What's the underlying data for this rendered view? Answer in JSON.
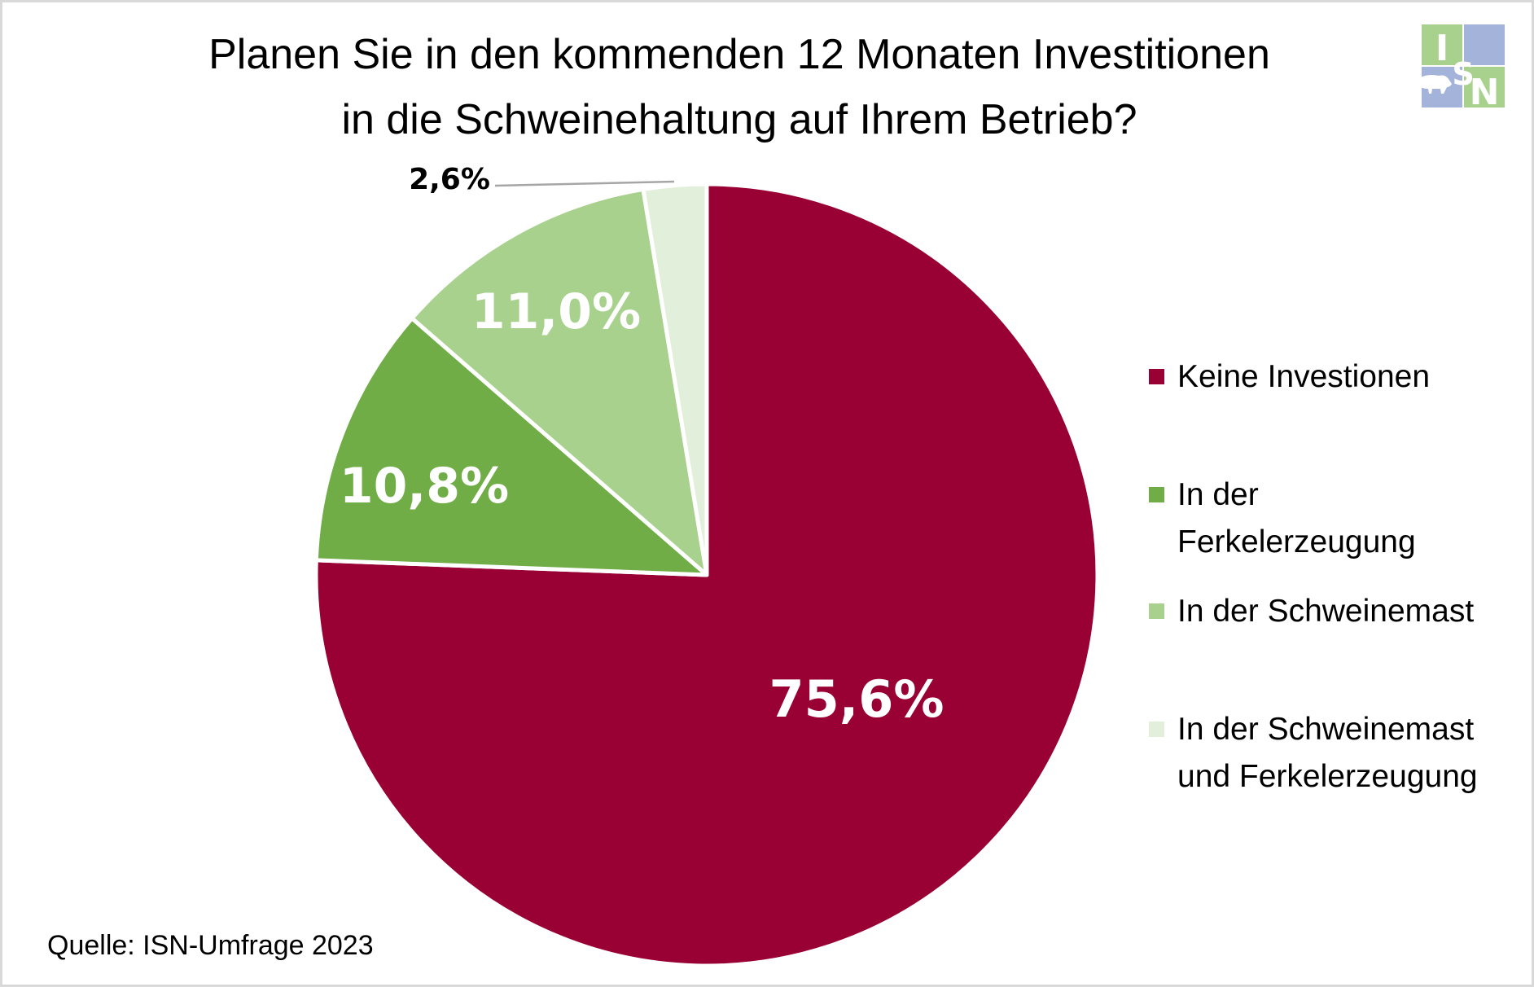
{
  "chart_data": {
    "type": "pie",
    "title": [
      "Planen Sie in den kommenden 12 Monaten Investitionen",
      "in die Schweinehaltung auf Ihrem Betrieb?"
    ],
    "categories": [
      "Keine Investionen",
      "In der Ferkelerzeugung",
      "In der Schweinemast",
      "In der Schweinemast und Ferkelerzeugung"
    ],
    "values": [
      75.6,
      10.8,
      11.0,
      2.6
    ],
    "unit": "%",
    "data_labels": [
      "75,6%",
      "10,8%",
      "11,0%",
      "2,6%"
    ],
    "colors": [
      "#990033",
      "#70ad47",
      "#a9d18e",
      "#e2efda"
    ],
    "start_angle": "12 o'clock",
    "direction": "clockwise",
    "legend": {
      "position": "right",
      "entries": [
        {
          "lines": [
            "Keine Investionen"
          ],
          "color": "#990033"
        },
        {
          "lines": [
            "In der",
            "Ferkelerzeugung"
          ],
          "color": "#70ad47"
        },
        {
          "lines": [
            "In der Schweinemast"
          ],
          "color": "#a9d18e"
        },
        {
          "lines": [
            "In der Schweinemast",
            "und Ferkelerzeugung"
          ],
          "color": "#e2efda"
        }
      ]
    },
    "source": "Quelle: ISN-Umfrage 2023"
  },
  "logo": {
    "letters": [
      "I",
      "S",
      "N"
    ],
    "icon": "pig-icon",
    "colors": {
      "green": "#a9d18e",
      "blue": "#a3b3d9"
    }
  }
}
